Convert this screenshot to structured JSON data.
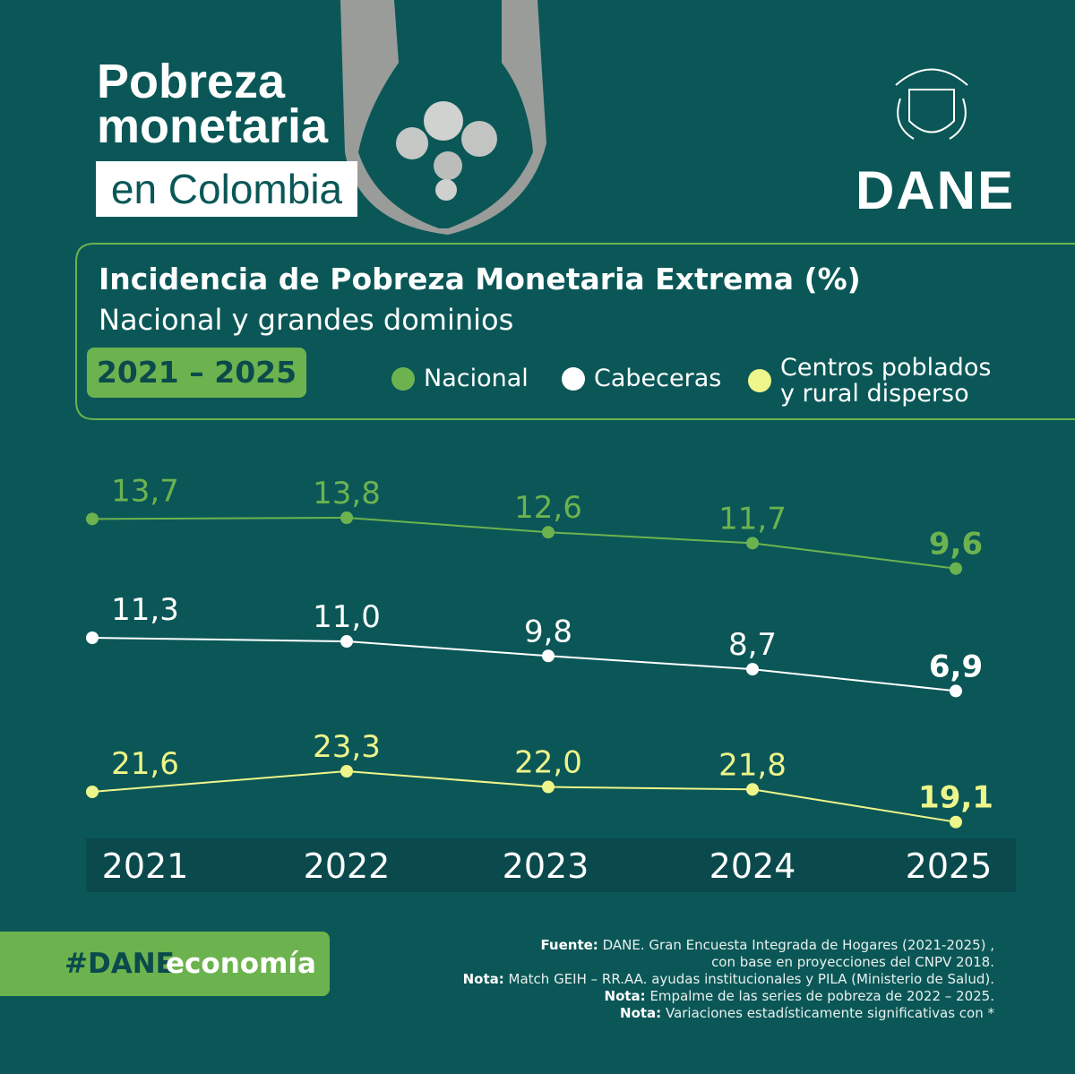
{
  "header": {
    "title_line1": "Pobreza",
    "title_line2": "monetaria",
    "title_highlight": "en Colombia",
    "logo": "DANE"
  },
  "chart_data": {
    "type": "line",
    "title": "Incidencia de Pobreza Monetaria Extrema (%)",
    "subtitle": "Nacional y grandes dominios",
    "period": "2021 – 2025",
    "categories": [
      "2021",
      "2022",
      "2023",
      "2024",
      "2025"
    ],
    "series": [
      {
        "name": "Nacional",
        "color": "#6cb34f",
        "values": [
          13.7,
          13.8,
          12.6,
          11.7,
          9.6
        ],
        "value_labels": [
          "13,7",
          "13,8",
          "12,6",
          "11,7",
          "9,6"
        ]
      },
      {
        "name": "Cabeceras",
        "color": "#ffffff",
        "values": [
          11.3,
          11.0,
          9.8,
          8.7,
          6.9
        ],
        "value_labels": [
          "11,3",
          "11,0",
          "9,8",
          "8,7",
          "6,9"
        ]
      },
      {
        "name": "Centros poblados y rural disperso",
        "color": "#eef58a",
        "values": [
          21.6,
          23.3,
          22.0,
          21.8,
          19.1
        ],
        "value_labels": [
          "21,6",
          "23,3",
          "22,0",
          "21,8",
          "19,1"
        ]
      }
    ]
  },
  "footer": {
    "hashtag_bold": "#DANE",
    "hashtag_rest": "economía",
    "notes": [
      {
        "label": "Fuente:",
        "text": "DANE. Gran Encuesta Integrada de Hogares (2021-2025) ,"
      },
      {
        "text": "con base en proyecciones del CNPV 2018."
      },
      {
        "label": "Nota:",
        "text": "Match GEIH – RR.AA. ayudas institucionales y PILA (Ministerio de Salud)."
      },
      {
        "label": "Nota:",
        "text": "Empalme de las series de pobreza de 2022 – 2025."
      },
      {
        "label": "Nota:",
        "text": "Variaciones estadísticamente significativas con *"
      }
    ]
  }
}
